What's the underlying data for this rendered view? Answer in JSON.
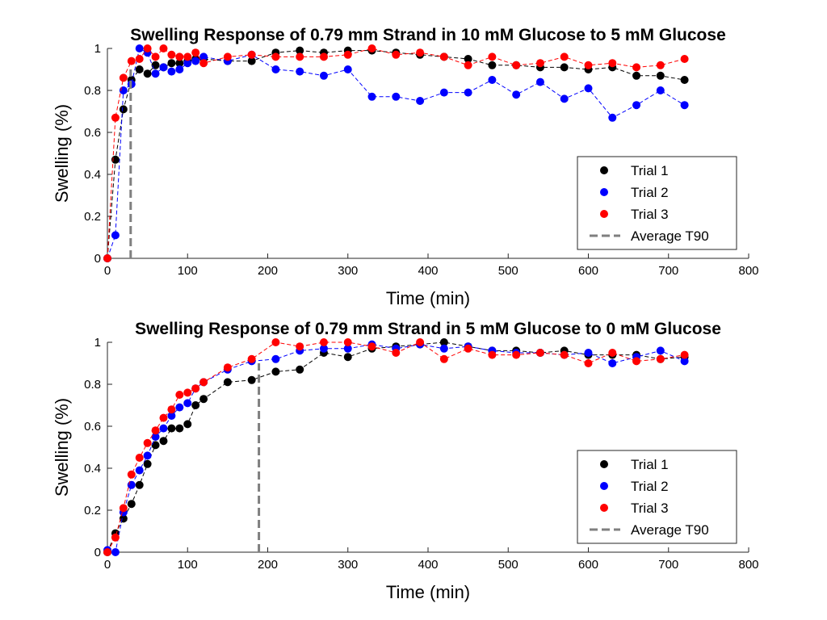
{
  "chart_data": [
    {
      "type": "scatter",
      "title": "Swelling Response of 0.79 mm Strand in 10 mM Glucose to 5 mM Glucose",
      "xlabel": "Time (min)",
      "ylabel": "Swelling (%)",
      "xlim": [
        0,
        800
      ],
      "ylim": [
        0,
        1
      ],
      "xticks": [
        "0",
        "100",
        "200",
        "300",
        "400",
        "500",
        "600",
        "700",
        "800"
      ],
      "yticks": [
        "0",
        "0.2",
        "0.4",
        "0.6",
        "0.8",
        "1"
      ],
      "grid": false,
      "legend_position": "bottom-right",
      "average_t90": 29,
      "average_t90_label": "Average T90",
      "average_t90_color": "#7f7f7f",
      "series": [
        {
          "name": "Trial 1",
          "color": "#000000",
          "x": [
            0,
            10,
            20,
            30,
            40,
            50,
            60,
            70,
            80,
            90,
            100,
            110,
            120,
            150,
            180,
            210,
            240,
            270,
            300,
            330,
            360,
            390,
            420,
            450,
            480,
            510,
            540,
            570,
            600,
            630,
            660,
            690,
            720
          ],
          "y": [
            0,
            0.47,
            0.71,
            0.85,
            0.9,
            0.88,
            0.92,
            0.91,
            0.93,
            0.93,
            0.94,
            0.95,
            0.95,
            0.94,
            0.94,
            0.98,
            0.99,
            0.98,
            0.99,
            0.99,
            0.98,
            0.97,
            0.96,
            0.95,
            0.92,
            0.92,
            0.91,
            0.91,
            0.9,
            0.91,
            0.87,
            0.87,
            0.85
          ]
        },
        {
          "name": "Trial 2",
          "color": "#0000ff",
          "x": [
            0,
            10,
            20,
            30,
            40,
            50,
            60,
            70,
            80,
            90,
            100,
            110,
            120,
            150,
            180,
            210,
            240,
            270,
            300,
            330,
            360,
            390,
            420,
            450,
            480,
            510,
            540,
            570,
            600,
            630,
            660,
            690,
            720
          ],
          "y": [
            0,
            0.11,
            0.8,
            0.83,
            1.0,
            0.98,
            0.88,
            0.91,
            0.89,
            0.9,
            0.93,
            0.94,
            0.96,
            0.94,
            0.97,
            0.9,
            0.89,
            0.87,
            0.9,
            0.77,
            0.77,
            0.75,
            0.79,
            0.79,
            0.85,
            0.78,
            0.84,
            0.76,
            0.81,
            0.67,
            0.73,
            0.8,
            0.73
          ]
        },
        {
          "name": "Trial 3",
          "color": "#ff0000",
          "x": [
            0,
            10,
            20,
            30,
            40,
            50,
            60,
            70,
            80,
            90,
            100,
            110,
            120,
            150,
            180,
            210,
            240,
            270,
            300,
            330,
            360,
            390,
            420,
            450,
            480,
            510,
            540,
            570,
            600,
            630,
            660,
            690,
            720
          ],
          "y": [
            0,
            0.67,
            0.86,
            0.94,
            0.95,
            1.0,
            0.96,
            1.0,
            0.97,
            0.96,
            0.96,
            0.98,
            0.93,
            0.96,
            0.97,
            0.96,
            0.96,
            0.96,
            0.97,
            1.0,
            0.97,
            0.98,
            0.96,
            0.92,
            0.96,
            0.92,
            0.93,
            0.96,
            0.92,
            0.93,
            0.91,
            0.92,
            0.95
          ]
        }
      ]
    },
    {
      "type": "scatter",
      "title": "Swelling Response of 0.79 mm Strand in 5 mM Glucose to 0 mM Glucose",
      "xlabel": "Time (min)",
      "ylabel": "Swelling (%)",
      "xlim": [
        0,
        800
      ],
      "ylim": [
        0,
        1
      ],
      "xticks": [
        "0",
        "100",
        "200",
        "300",
        "400",
        "500",
        "600",
        "700",
        "800"
      ],
      "yticks": [
        "0",
        "0.2",
        "0.4",
        "0.6",
        "0.8",
        "1"
      ],
      "grid": false,
      "legend_position": "bottom-right",
      "average_t90": 189,
      "average_t90_label": "Average T90",
      "average_t90_color": "#7f7f7f",
      "series": [
        {
          "name": "Trial 1",
          "color": "#000000",
          "x": [
            0,
            10,
            20,
            30,
            40,
            50,
            60,
            70,
            80,
            90,
            100,
            110,
            120,
            150,
            180,
            210,
            240,
            270,
            300,
            330,
            360,
            390,
            420,
            450,
            480,
            510,
            540,
            570,
            600,
            630,
            660,
            690,
            720
          ],
          "y": [
            0,
            0.09,
            0.16,
            0.23,
            0.32,
            0.42,
            0.51,
            0.53,
            0.59,
            0.59,
            0.61,
            0.7,
            0.73,
            0.81,
            0.82,
            0.86,
            0.87,
            0.95,
            0.93,
            0.97,
            0.98,
            0.99,
            1.0,
            0.98,
            0.96,
            0.96,
            0.95,
            0.96,
            0.94,
            0.94,
            0.94,
            0.92,
            0.93
          ]
        },
        {
          "name": "Trial 2",
          "color": "#0000ff",
          "x": [
            0,
            10,
            20,
            30,
            40,
            50,
            60,
            70,
            80,
            90,
            100,
            110,
            120,
            150,
            180,
            210,
            240,
            270,
            300,
            330,
            360,
            390,
            420,
            450,
            480,
            510,
            540,
            570,
            600,
            630,
            660,
            690,
            720
          ],
          "y": [
            0.01,
            0,
            0.19,
            0.32,
            0.39,
            0.46,
            0.55,
            0.59,
            0.65,
            0.69,
            0.71,
            0.78,
            0.81,
            0.87,
            0.91,
            0.92,
            0.96,
            0.97,
            0.97,
            0.99,
            0.97,
            0.99,
            0.97,
            0.98,
            0.96,
            0.95,
            0.95,
            0.94,
            0.95,
            0.9,
            0.93,
            0.96,
            0.91
          ]
        },
        {
          "name": "Trial 3",
          "color": "#ff0000",
          "x": [
            0,
            10,
            20,
            30,
            40,
            50,
            60,
            70,
            80,
            90,
            100,
            110,
            120,
            150,
            180,
            210,
            240,
            270,
            300,
            330,
            360,
            390,
            420,
            450,
            480,
            510,
            540,
            570,
            600,
            630,
            660,
            690,
            720
          ],
          "y": [
            0,
            0.07,
            0.21,
            0.37,
            0.45,
            0.52,
            0.58,
            0.64,
            0.68,
            0.75,
            0.76,
            0.78,
            0.81,
            0.88,
            0.92,
            1.0,
            0.98,
            1.0,
            1.0,
            0.98,
            0.95,
            1.0,
            0.92,
            0.97,
            0.94,
            0.94,
            0.95,
            0.94,
            0.9,
            0.95,
            0.91,
            0.92,
            0.94
          ]
        }
      ]
    }
  ]
}
